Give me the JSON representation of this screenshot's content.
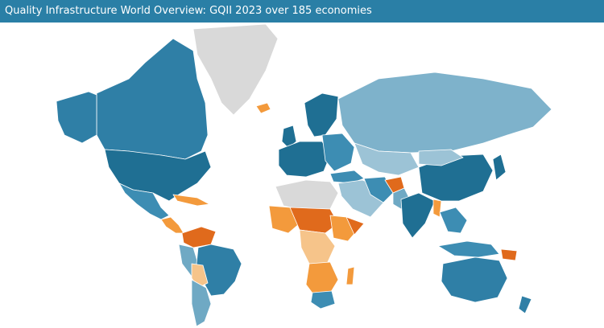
{
  "header": {
    "title": "Quality Infrastructure World Overview: GQII 2023 over 185 economies"
  },
  "colors": {
    "header_bg": "#2a7fa6",
    "high": "#1f6f93",
    "high_mid": "#3d8db3",
    "mid": "#6fa9c4",
    "low_mid": "#9cc3d6",
    "no_data": "#d4d4d4",
    "light_orange": "#f6c48a",
    "orange": "#f39a3c",
    "dark_orange": "#e06a1c"
  },
  "legend_scale": [
    "high",
    "high_mid",
    "mid",
    "low_mid",
    "no_data",
    "light_orange",
    "orange",
    "dark_orange"
  ]
}
